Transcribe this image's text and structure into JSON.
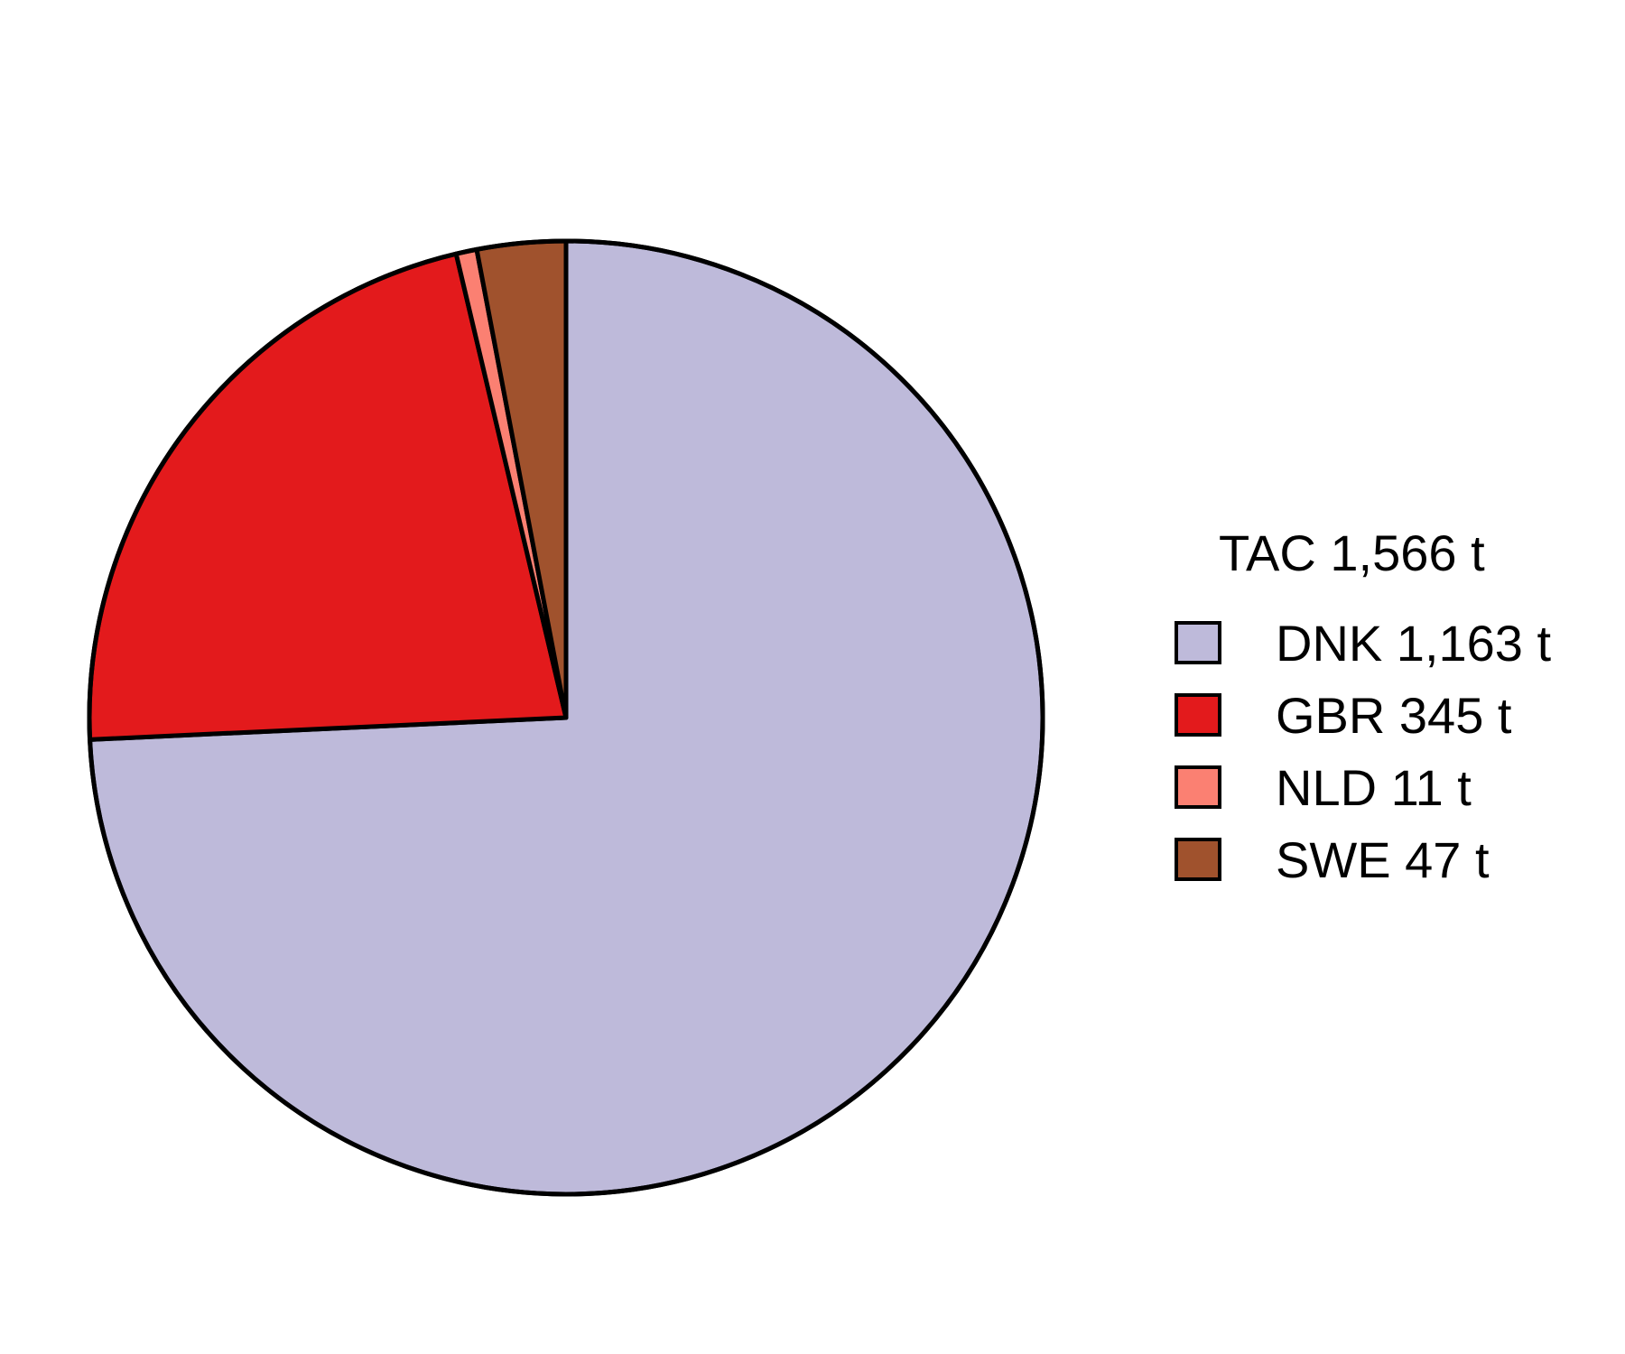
{
  "chart_data": {
    "type": "pie",
    "legend_title": "TAC 1,566 t",
    "legend_position": "right",
    "start": "12 o'clock",
    "direction": "clockwise",
    "slices": [
      {
        "category": "DNK",
        "value": 1163,
        "label": "DNK 1,163 t",
        "color": "#bebada"
      },
      {
        "category": "GBR",
        "value": 345,
        "label": "GBR 345 t",
        "color": "#e31a1c"
      },
      {
        "category": "NLD",
        "value": 11,
        "label": "NLD 11 t",
        "color": "#fb8072"
      },
      {
        "category": "SWE",
        "value": 47,
        "label": "SWE 47 t",
        "color": "#a0522d"
      }
    ]
  }
}
